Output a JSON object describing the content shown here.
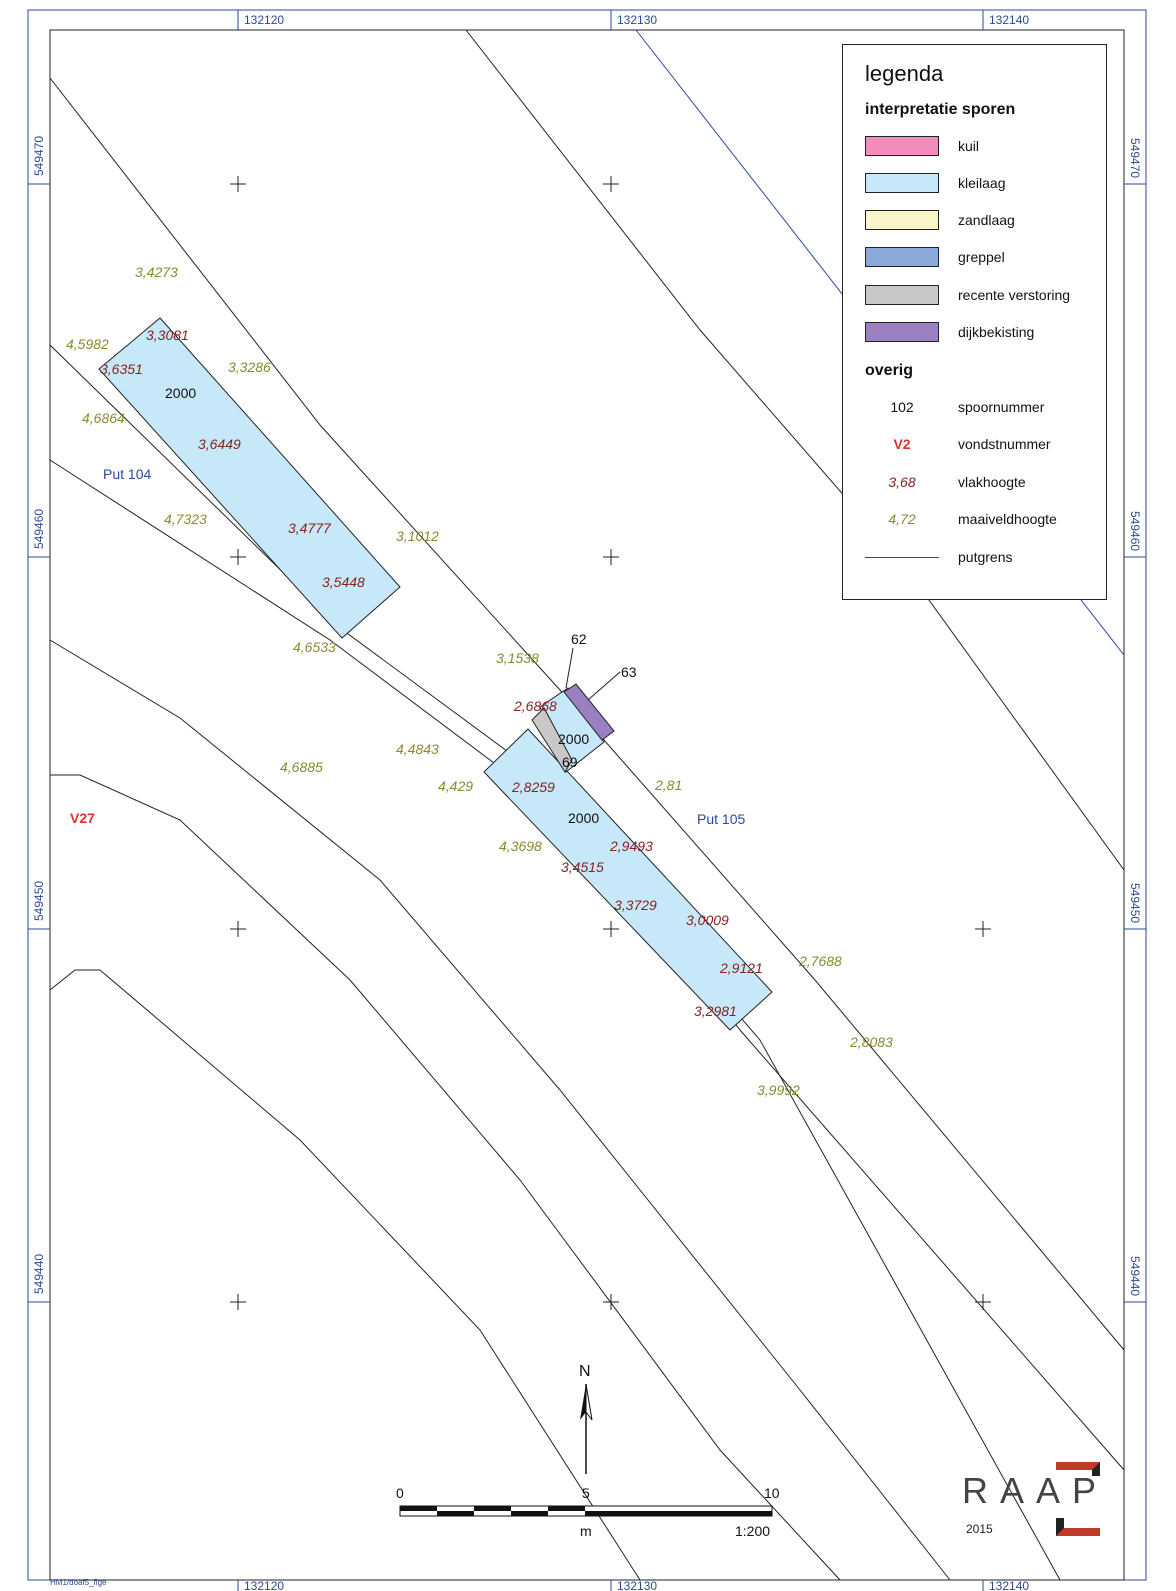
{
  "grid": {
    "x_labels": [
      "132120",
      "132130",
      "132140"
    ],
    "y_labels": [
      "549470",
      "549460",
      "549450",
      "549440"
    ]
  },
  "legend": {
    "title": "legenda",
    "section_interp": "interpretatie sporen",
    "items": [
      {
        "label": "kuil",
        "color": "#f28cbd"
      },
      {
        "label": "kleilaag",
        "color": "#c6e8f8"
      },
      {
        "label": "zandlaag",
        "color": "#f8f6c8"
      },
      {
        "label": "greppel",
        "color": "#8aa8d8"
      },
      {
        "label": "recente verstoring",
        "color": "#c8c8c8"
      },
      {
        "label": "dijkbekisting",
        "color": "#9a80c0"
      }
    ],
    "section_other": "overig",
    "other": [
      {
        "symbol": "102",
        "label": "spoornummer",
        "color": "#111111",
        "style": "normal"
      },
      {
        "symbol": "V2",
        "label": "vondstnummer",
        "color": "#e03030",
        "style": "bold"
      },
      {
        "symbol": "3,68",
        "label": "vlakhoogte",
        "color": "#8a2020",
        "style": "italic"
      },
      {
        "symbol": "4,72",
        "label": "maaiveldhoogte",
        "color": "#8a8a30",
        "style": "italic"
      },
      {
        "symbol": "",
        "label": "putgrens",
        "color": "#2a4a9a",
        "style": "line"
      }
    ]
  },
  "features": {
    "put_104": "Put 104",
    "put_105": "Put 105",
    "v27": "V27",
    "spoor_2000": "2000",
    "spoor_62": "62",
    "spoor_63": "63",
    "spoor_69": "69"
  },
  "vlakhoogte": [
    "3,3081",
    "3,6351",
    "3,6449",
    "3,4777",
    "3,5448",
    "2,6868",
    "2,8259",
    "2,9493",
    "3,4515",
    "3,3729",
    "3,0009",
    "2,9121",
    "3,2981"
  ],
  "maaiveldhoogte": [
    "3,4273",
    "4,5982",
    "3,3286",
    "4,6864",
    "4,7323",
    "3,1012",
    "4,6533",
    "3,1538",
    "4,4843",
    "4,6885",
    "4,429",
    "2,81",
    "4,3698",
    "2,7688",
    "2,8083",
    "3,9992"
  ],
  "scalebar": {
    "t0": "0",
    "t5": "5",
    "t10": "10",
    "unit": "m",
    "scale": "1:200"
  },
  "north": "N",
  "logo": {
    "letters": "RAAP",
    "year": "2015"
  },
  "footer_id": "HM1/doaf5_fige",
  "colors": {
    "kleilaag": "#c6e8f8",
    "verstoring": "#c8c8c8",
    "dijkbekisting": "#9a80c0",
    "putgrens": "#2a4a9a",
    "vlak": "#8a2020",
    "maaiveld": "#8a8a30",
    "vondst": "#e03030"
  }
}
